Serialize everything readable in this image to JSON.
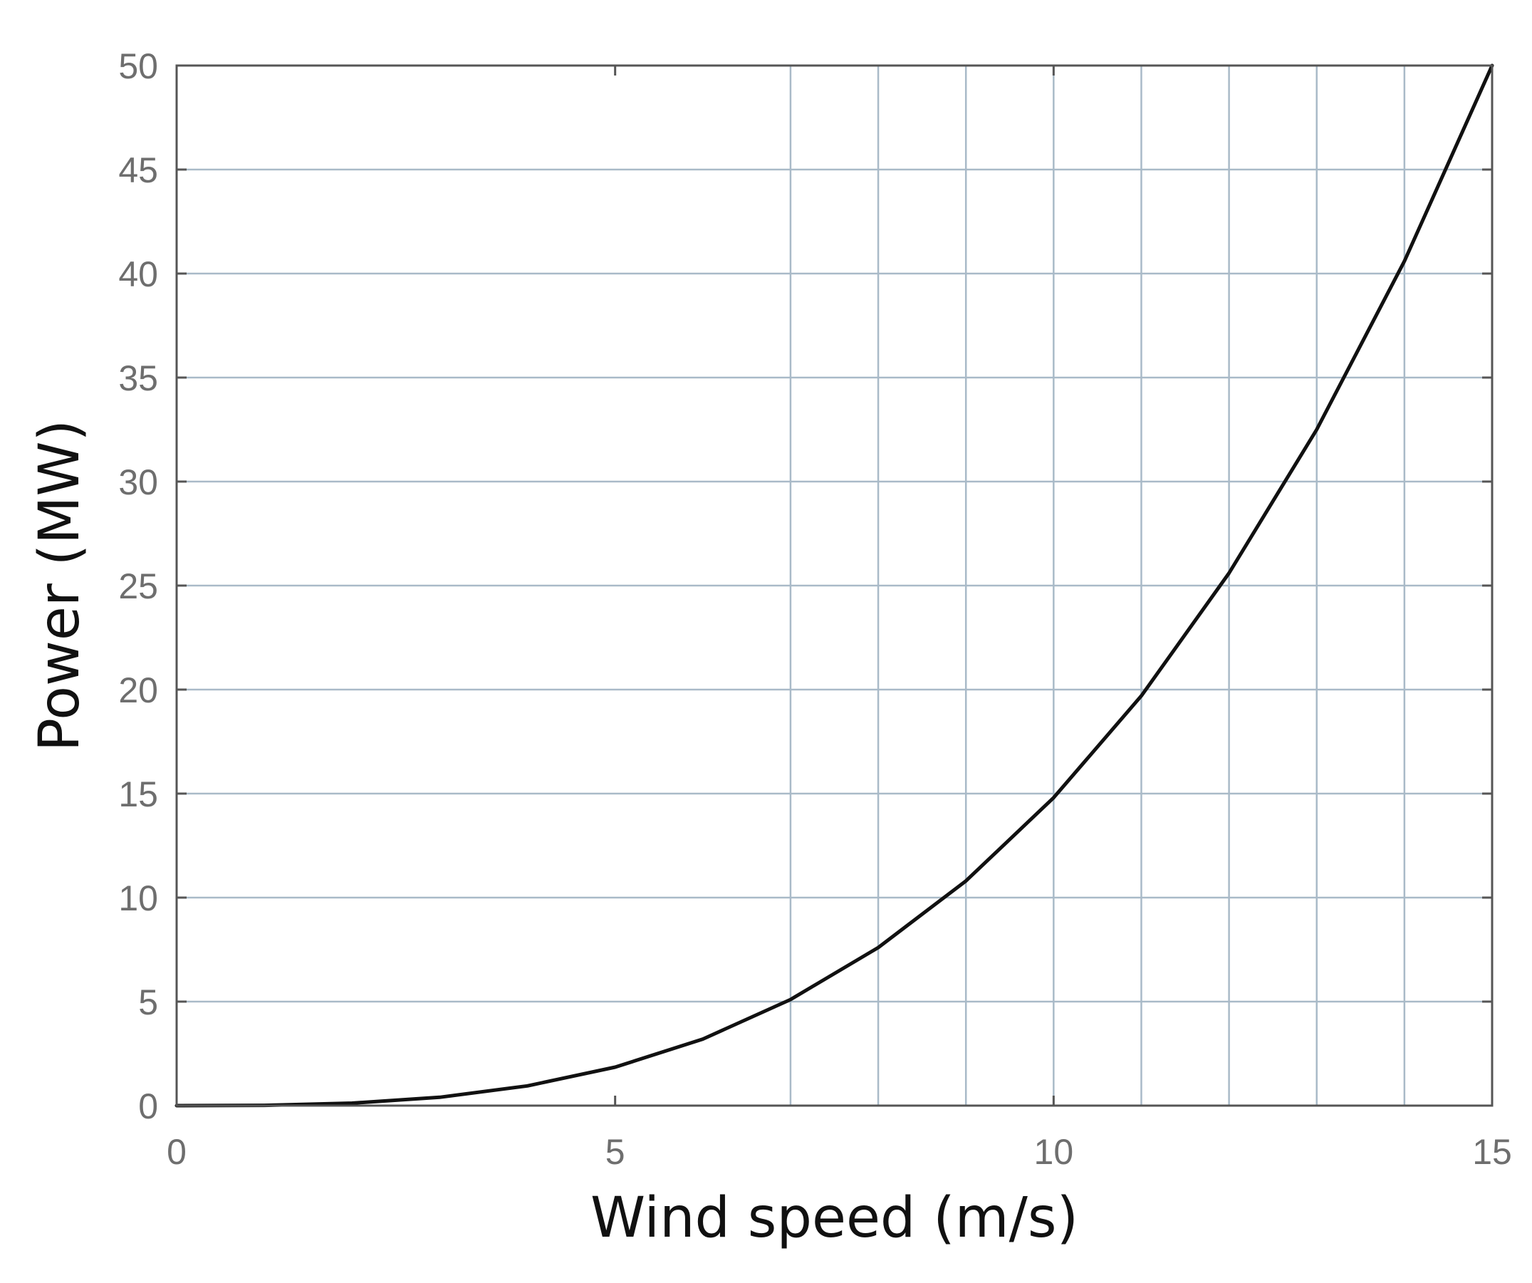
{
  "chart_data": {
    "type": "line",
    "title": "",
    "xlabel": "Wind speed (m/s)",
    "ylabel": "Power (MW)",
    "xlim": [
      0,
      15
    ],
    "ylim": [
      0,
      50
    ],
    "x_ticks": [
      0,
      5,
      10,
      15
    ],
    "y_ticks": [
      0,
      5,
      10,
      15,
      20,
      25,
      30,
      35,
      40,
      45,
      50
    ],
    "x_tick_labels": [
      "0",
      "5",
      "10",
      "15"
    ],
    "y_tick_labels": [
      "0",
      "5",
      "10",
      "15",
      "20",
      "25",
      "30",
      "35",
      "40",
      "45",
      "50"
    ],
    "x_grid": [
      7,
      8,
      9,
      10,
      11,
      12,
      13,
      14
    ],
    "y_grid": [
      5,
      10,
      15,
      20,
      25,
      30,
      35,
      40,
      45
    ],
    "grid": true,
    "legend": "none",
    "series": [
      {
        "x": [
          0,
          1,
          2,
          3,
          4,
          5,
          6,
          7,
          8,
          9,
          10,
          11,
          12,
          13,
          14,
          15
        ],
        "values": [
          0,
          0.015,
          0.12,
          0.4,
          0.95,
          1.85,
          3.2,
          5.1,
          7.6,
          10.8,
          14.8,
          19.7,
          25.6,
          32.5,
          40.6,
          50
        ],
        "color": "#111111"
      }
    ]
  }
}
